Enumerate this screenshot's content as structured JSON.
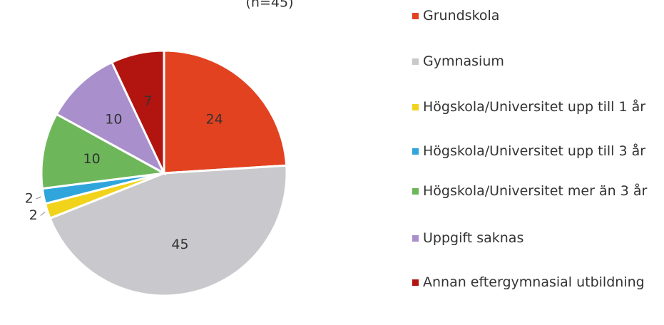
{
  "chart_data": {
    "type": "pie",
    "subtitle": "(n=45)",
    "categories": [
      "Grundskola",
      "Gymnasium",
      "Högskola/Universitet upp till 1 år",
      "Högskola/Universitet upp till 3 år",
      "Högskola/Universitet mer än 3 år",
      "Uppgift saknas",
      "Annan eftergymnasial utbildning"
    ],
    "values": [
      24,
      45,
      2,
      2,
      10,
      10,
      7
    ],
    "colors": [
      "#e2421f",
      "#c9c9cd",
      "#f2d31b",
      "#2fa5dc",
      "#6db75a",
      "#a98fcc",
      "#b2150f"
    ]
  }
}
